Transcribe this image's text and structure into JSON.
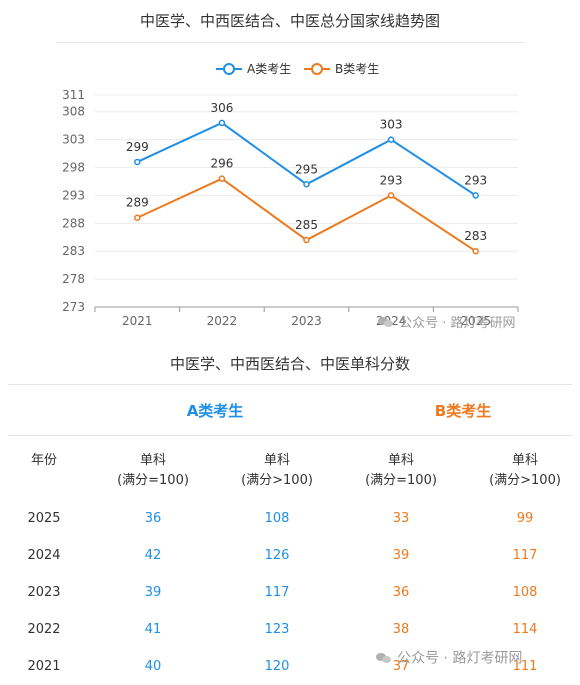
{
  "chart_data": {
    "type": "line",
    "title": "中医学、中西医结合、中医总分国家线趋势图",
    "categories": [
      "2021",
      "2022",
      "2023",
      "2024",
      "2025"
    ],
    "yticks": [
      273,
      278,
      283,
      288,
      293,
      298,
      303,
      308,
      311
    ],
    "ylim": [
      273,
      311
    ],
    "grid": true,
    "legend_position": "top-center",
    "series": [
      {
        "name": "A类考生",
        "values": [
          299,
          306,
          295,
          303,
          293
        ],
        "color": "#1f8ee6"
      },
      {
        "name": "B类考生",
        "values": [
          289,
          296,
          285,
          293,
          283
        ],
        "color": "#ee7a1f"
      }
    ]
  },
  "table": {
    "title": "中医学、中西医结合、中医单科分数",
    "groups": [
      {
        "label": "A类考生",
        "color": "#1f8ee6"
      },
      {
        "label": "B类考生",
        "color": "#ee7a1f"
      }
    ],
    "year_header": "年份",
    "columns": [
      {
        "line1": "单科",
        "line2": "(满分=100)"
      },
      {
        "line1": "单科",
        "line2": "(满分>100)"
      },
      {
        "line1": "单科",
        "line2": "(满分=100)"
      },
      {
        "line1": "单科",
        "line2": "(满分>100)"
      }
    ],
    "rows": [
      {
        "year": "2025",
        "values": [
          "36",
          "108",
          "33",
          "99"
        ]
      },
      {
        "year": "2024",
        "values": [
          "42",
          "126",
          "39",
          "117"
        ]
      },
      {
        "year": "2023",
        "values": [
          "39",
          "117",
          "36",
          "108"
        ]
      },
      {
        "year": "2022",
        "values": [
          "41",
          "123",
          "38",
          "114"
        ]
      },
      {
        "year": "2021",
        "values": [
          "40",
          "120",
          "37",
          "111"
        ]
      }
    ]
  },
  "watermark": {
    "text": "公众号 · 路灯考研网",
    "icon": "wechat-icon"
  }
}
